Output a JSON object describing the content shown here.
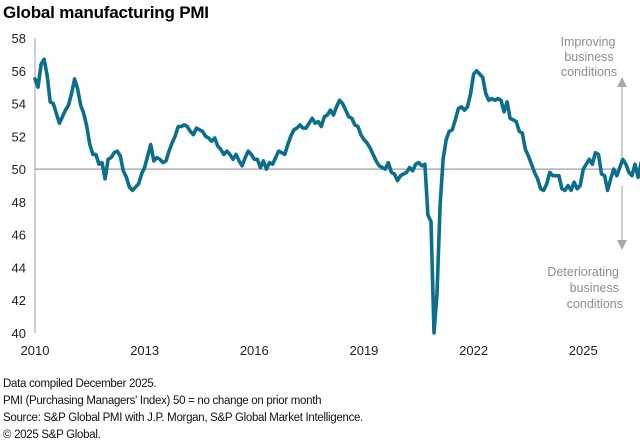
{
  "chart_data": {
    "type": "line",
    "title": "Global manufacturing PMI",
    "xlabel": "",
    "ylabel": "",
    "ylim": [
      40,
      58
    ],
    "yticks": [
      40,
      42,
      44,
      46,
      48,
      50,
      52,
      54,
      56,
      58
    ],
    "xticks": [
      "2010",
      "2013",
      "2016",
      "2019",
      "2022",
      "2025"
    ],
    "x_start": "2010-01",
    "x_frequency": "monthly",
    "reference_line": 50,
    "grid": false,
    "series": [
      {
        "name": "Global manufacturing PMI",
        "color": "#0a6e8c",
        "values": [
          55.5,
          55.0,
          56.4,
          56.7,
          55.7,
          54.1,
          54.0,
          53.4,
          52.8,
          53.2,
          53.6,
          53.9,
          54.6,
          55.5,
          54.9,
          53.9,
          53.4,
          52.6,
          51.5,
          50.9,
          50.9,
          50.3,
          50.4,
          49.4,
          50.6,
          50.7,
          51.0,
          51.1,
          50.8,
          49.9,
          49.5,
          48.9,
          48.7,
          48.9,
          49.1,
          49.7,
          50.1,
          50.8,
          51.5,
          50.5,
          50.7,
          50.6,
          50.4,
          50.5,
          51.1,
          51.6,
          52.0,
          52.6,
          52.6,
          52.7,
          52.6,
          52.3,
          52.1,
          52.5,
          52.4,
          52.3,
          52.0,
          51.9,
          51.7,
          51.9,
          51.4,
          51.2,
          50.9,
          51.1,
          50.9,
          50.6,
          50.9,
          50.5,
          50.2,
          50.7,
          51.1,
          50.9,
          50.6,
          50.6,
          50.1,
          50.5,
          50.0,
          50.4,
          50.3,
          50.7,
          51.1,
          51.0,
          50.9,
          51.5,
          52.0,
          52.4,
          52.5,
          52.7,
          52.5,
          52.5,
          52.8,
          53.1,
          52.8,
          52.9,
          52.6,
          53.2,
          53.3,
          53.6,
          53.3,
          53.8,
          54.2,
          54.0,
          53.6,
          53.2,
          53.1,
          52.7,
          52.6,
          52.1,
          51.8,
          51.6,
          51.3,
          50.9,
          50.5,
          50.2,
          50.1,
          50.0,
          50.4,
          49.8,
          49.7,
          49.3,
          49.6,
          49.7,
          49.8,
          50.1,
          49.9,
          50.3,
          50.4,
          50.2,
          50.3,
          47.2,
          46.8,
          39.8,
          42.4,
          47.8,
          50.6,
          51.8,
          52.3,
          52.4,
          53.0,
          53.7,
          53.8,
          53.6,
          53.8,
          54.6,
          55.8,
          56.0,
          55.8,
          55.6,
          54.6,
          54.2,
          54.3,
          54.2,
          54.3,
          54.2,
          53.5,
          54.1,
          53.1,
          53.0,
          52.9,
          52.3,
          52.2,
          51.2,
          50.8,
          50.3,
          49.8,
          49.4,
          48.8,
          48.7,
          49.1,
          49.8,
          49.6,
          49.6,
          49.6,
          48.8,
          48.7,
          49.0,
          48.7,
          49.2,
          48.8,
          49.0,
          50.0,
          50.3,
          50.6,
          50.3,
          51.0,
          50.9,
          49.7,
          49.6,
          48.7,
          49.4,
          50.0,
          49.6,
          50.1,
          50.6,
          50.3,
          49.8,
          49.6,
          50.3,
          49.5,
          50.4,
          50.8,
          50.7,
          50.9,
          50.5
        ]
      }
    ],
    "annotations": [
      {
        "text": [
          "Improving",
          "business",
          "conditions"
        ],
        "arrow": "up",
        "position": "top-right"
      },
      {
        "text": [
          "Deteriorating",
          "business",
          "conditions"
        ],
        "arrow": "down",
        "position": "bottom-right"
      }
    ]
  },
  "footer": {
    "lines": [
      "Data compiled December 2025.",
      "PMI (Purchasing Managers' Index) 50 = no change on prior month",
      "Source: S&P Global  PMI with J.P. Morgan, S&P Global Market Intelligence.",
      "© 2025 S&P Global."
    ]
  }
}
